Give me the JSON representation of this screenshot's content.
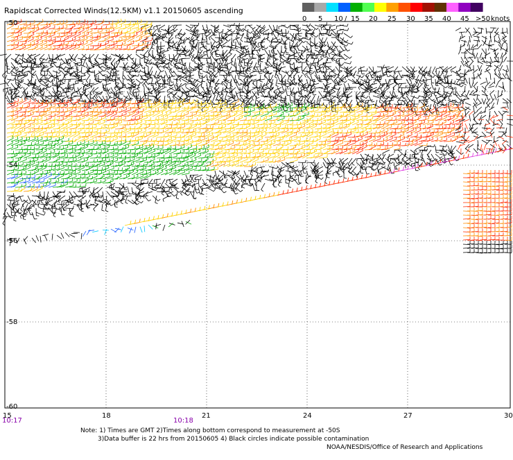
{
  "title": "Rapidscat Corrected Winds(12.5KM) v1.1 20150605 ascending",
  "legend": {
    "labels": [
      "0",
      "5",
      "10",
      "15",
      "20",
      "25",
      "30",
      "35",
      "40",
      "45",
      ">50"
    ],
    "separator": "/",
    "unit": "knots",
    "colors": [
      "#606060",
      "#a8a8a8",
      "#00e0ff",
      "#0060ff",
      "#00b000",
      "#50ff50",
      "#ffff00",
      "#ffa000",
      "#ff5000",
      "#ff0000",
      "#a01000",
      "#603000",
      "#ff60ff",
      "#9000c0",
      "#400060"
    ]
  },
  "axes": {
    "x_ticks": [
      "15",
      "18",
      "21",
      "24",
      "27",
      "30"
    ],
    "y_ticks": [
      "-50",
      "-52",
      "-54",
      "-56",
      "-58",
      "-60"
    ],
    "time_labels": [
      "10:17",
      "10:18"
    ]
  },
  "notes": {
    "line1": "Note: 1) Times are GMT 2)Times along bottom correspond to measurement at -50S",
    "line2": "3)Data buffer is 22 hrs from 20150605 4) Black circles indicate possible contamination",
    "line3": "NOAA/NESDIS/Office of Research and Applications"
  },
  "colors": {
    "black_barb": "#000000",
    "grid": "#000000"
  }
}
